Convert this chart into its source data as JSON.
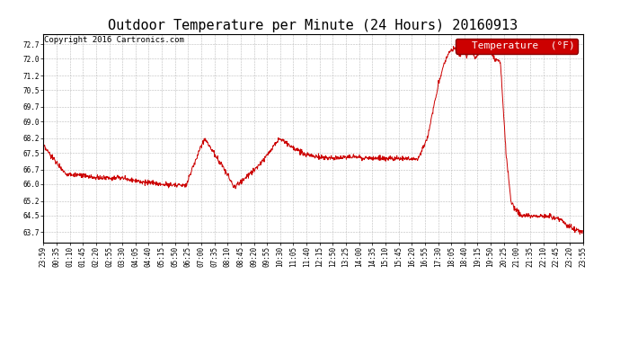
{
  "title": "Outdoor Temperature per Minute (24 Hours) 20160913",
  "copyright": "Copyright 2016 Cartronics.com",
  "legend_label": "Temperature  (°F)",
  "line_color": "#cc0000",
  "background_color": "#ffffff",
  "grid_color": "#bbbbbb",
  "yticks": [
    63.7,
    64.5,
    65.2,
    66.0,
    66.7,
    67.5,
    68.2,
    69.0,
    69.7,
    70.5,
    71.2,
    72.0,
    72.7
  ],
  "ylim": [
    63.2,
    73.2
  ],
  "xtick_labels": [
    "23:59",
    "00:35",
    "01:10",
    "01:45",
    "02:20",
    "02:55",
    "03:30",
    "04:05",
    "04:40",
    "05:15",
    "05:50",
    "06:25",
    "07:00",
    "07:35",
    "08:10",
    "08:45",
    "09:20",
    "09:55",
    "10:30",
    "11:05",
    "11:40",
    "12:15",
    "12:50",
    "13:25",
    "14:00",
    "14:35",
    "15:10",
    "15:45",
    "16:20",
    "16:55",
    "17:30",
    "18:05",
    "18:40",
    "19:15",
    "19:50",
    "20:25",
    "21:00",
    "21:35",
    "22:10",
    "22:45",
    "23:20",
    "23:55"
  ],
  "title_fontsize": 11,
  "copyright_fontsize": 6.5,
  "tick_fontsize": 5.5,
  "legend_fontsize": 8
}
